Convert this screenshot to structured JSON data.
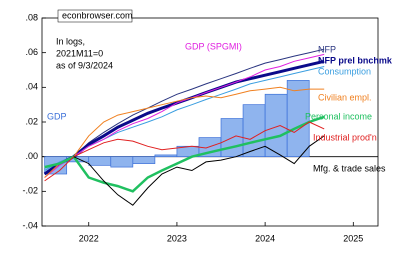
{
  "chart_data": {
    "type": "line",
    "source": "econbrowser.com",
    "note": [
      "In logs,",
      "2021M11=0",
      "as of 9/3/2024"
    ],
    "x": [
      2021.5,
      2021.67,
      2021.83,
      2022,
      2022.17,
      2022.33,
      2022.5,
      2022.67,
      2022.83,
      2023,
      2023.17,
      2023.33,
      2023.5,
      2023.67,
      2023.83,
      2024,
      2024.17,
      2024.33,
      2024.5,
      2024.67
    ],
    "series": [
      {
        "name": "NFP",
        "color": "#2a3580",
        "width": 1,
        "values": [
          -0.01,
          -0.004,
          0,
          0.008,
          0.014,
          0.019,
          0.024,
          0.028,
          0.032,
          0.036,
          0.039,
          0.042,
          0.045,
          0.048,
          0.051,
          0.054,
          0.056,
          0.058,
          0.06,
          0.062
        ]
      },
      {
        "name": "NFP prel bnchmk",
        "color": "#0a0a8a",
        "width": 3,
        "values": [
          -0.01,
          -0.004,
          0,
          0.007,
          0.012,
          0.017,
          0.021,
          0.025,
          0.028,
          0.031,
          0.034,
          0.037,
          0.04,
          0.043,
          0.045,
          0.047,
          0.049,
          0.051,
          0.053,
          0.055
        ]
      },
      {
        "name": "Consumption",
        "color": "#3a9ee0",
        "width": 1,
        "values": [
          -0.008,
          -0.003,
          0,
          0.006,
          0.01,
          0.014,
          0.017,
          0.02,
          0.023,
          0.027,
          0.03,
          0.033,
          0.036,
          0.039,
          0.042,
          0.044,
          0.046,
          0.048,
          0.05,
          0.052
        ]
      },
      {
        "name": "GDP (SPGMI)",
        "color": "#e020e0",
        "width": 1,
        "values": [
          -0.012,
          -0.005,
          0,
          0.006,
          0.01,
          0.015,
          0.019,
          0.022,
          0.026,
          0.031,
          0.034,
          0.037,
          0.04,
          0.043,
          0.046,
          0.05,
          0.052,
          0.055,
          0.057,
          0.059
        ]
      },
      {
        "name": "Civilian empl.",
        "color": "#f08020",
        "width": 1,
        "values": [
          -0.012,
          -0.004,
          0,
          0.012,
          0.02,
          0.024,
          0.026,
          0.028,
          0.03,
          0.032,
          0.034,
          0.035,
          0.034,
          0.036,
          0.038,
          0.039,
          0.04,
          0.038,
          0.039,
          0.039
        ]
      },
      {
        "name": "Personal income",
        "color": "#20c060",
        "width": 2.5,
        "values": [
          -0.006,
          -0.004,
          0,
          -0.012,
          -0.015,
          -0.017,
          -0.02,
          -0.012,
          -0.008,
          -0.004,
          0,
          0.002,
          0.004,
          0.006,
          0.008,
          0.01,
          0.012,
          0.016,
          0.02,
          0.023
        ]
      },
      {
        "name": "Industrial prod'n",
        "color": "#e02020",
        "width": 1,
        "values": [
          -0.014,
          -0.008,
          0,
          0.004,
          0.008,
          0.01,
          0.009,
          0.006,
          0.004,
          0.005,
          0.006,
          0.005,
          0.008,
          0.012,
          0.01,
          0.015,
          0.018,
          0.014,
          0.02,
          0.016
        ]
      },
      {
        "name": "Mfg. & trade sales",
        "color": "#000000",
        "width": 1,
        "values": [
          null,
          null,
          0,
          -0.004,
          -0.014,
          -0.022,
          -0.028,
          -0.018,
          -0.01,
          -0.006,
          -0.008,
          -0.003,
          -0.002,
          0,
          0.003,
          0.006,
          0.001,
          -0.004,
          0.006,
          0.012
        ]
      }
    ],
    "bars": {
      "name": "GDP",
      "color": "#8fb4ee",
      "edge": "#3a6fd8",
      "x": [
        2021.5,
        2021.75,
        2022,
        2022.25,
        2022.5,
        2022.75,
        2023,
        2023.25,
        2023.5,
        2023.75,
        2024,
        2024.25
      ],
      "values": [
        -0.01,
        -0.003,
        -0.005,
        -0.006,
        -0.004,
        0.001,
        0.006,
        0.011,
        0.022,
        0.03,
        0.036,
        0.044
      ]
    },
    "xlim": [
      2021.47,
      2025.28
    ],
    "xticks": [
      2022,
      2023,
      2024,
      2025
    ],
    "ylim": [
      -0.04,
      0.08
    ],
    "yticks": [
      {
        "value": -0.04,
        "label": "-.04"
      },
      {
        "value": -0.02,
        "label": "-.02"
      },
      {
        "value": 0,
        "label": ".00"
      },
      {
        "value": 0.02,
        "label": ".02"
      },
      {
        "value": 0.04,
        "label": ".04"
      },
      {
        "value": 0.06,
        "label": ".06"
      },
      {
        "value": 0.08,
        "label": ".08"
      }
    ]
  }
}
